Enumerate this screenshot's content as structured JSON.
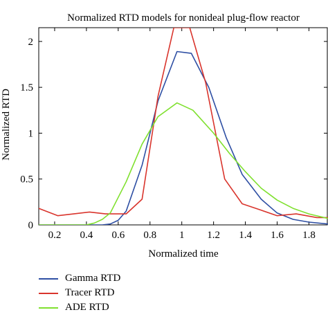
{
  "chart_data": {
    "type": "line",
    "title": "Normalized RTD models for nonideal plug-flow reactor",
    "xlabel": "Normalized time",
    "ylabel": "Normalized RTD",
    "xlim": [
      0.1,
      1.92
    ],
    "ylim": [
      0,
      2.15
    ],
    "xticks": [
      0.2,
      0.4,
      0.6,
      0.8,
      1,
      1.2,
      1.4,
      1.6,
      1.8
    ],
    "xtick_labels": [
      "0.2",
      "0.4",
      "0.6",
      "0.8",
      "1",
      "1.2",
      "1.4",
      "1.6",
      "1.8"
    ],
    "yticks": [
      0,
      0.5,
      1,
      1.5,
      2
    ],
    "ytick_labels": [
      "0",
      "0.5",
      "1",
      "1.5",
      "2"
    ],
    "grid": false,
    "legend_position": "bottom-left, below the plot",
    "series": [
      {
        "name": "Gamma RTD",
        "color": "#2d4ea3",
        "x": [
          0.1,
          0.2,
          0.3,
          0.4,
          0.45,
          0.5,
          0.55,
          0.6,
          0.65,
          0.75,
          0.85,
          0.97,
          1.06,
          1.17,
          1.28,
          1.38,
          1.5,
          1.6,
          1.7,
          1.8,
          1.92
        ],
        "y": [
          0,
          0,
          0,
          0,
          0,
          0,
          0.01,
          0.05,
          0.15,
          0.65,
          1.35,
          1.89,
          1.87,
          1.5,
          0.95,
          0.55,
          0.28,
          0.13,
          0.06,
          0.03,
          0.01
        ]
      },
      {
        "name": "Tracer RTD",
        "color": "#d9342c",
        "x": [
          0.1,
          0.22,
          0.32,
          0.42,
          0.52,
          0.65,
          0.75,
          0.85,
          0.95,
          1.05,
          1.15,
          1.27,
          1.38,
          1.5,
          1.6,
          1.72,
          1.85,
          1.92
        ],
        "y": [
          0.18,
          0.1,
          0.12,
          0.14,
          0.12,
          0.12,
          0.28,
          1.4,
          2.15,
          2.15,
          1.55,
          0.5,
          0.23,
          0.16,
          0.1,
          0.12,
          0.08,
          0.08
        ]
      },
      {
        "name": "ADE RTD",
        "color": "#7fe02e",
        "x": [
          0.1,
          0.3,
          0.4,
          0.45,
          0.5,
          0.55,
          0.65,
          0.75,
          0.85,
          0.97,
          1.07,
          1.2,
          1.3,
          1.4,
          1.5,
          1.6,
          1.7,
          1.8,
          1.92
        ],
        "y": [
          0,
          0,
          0,
          0.02,
          0.06,
          0.13,
          0.47,
          0.88,
          1.18,
          1.33,
          1.25,
          1.0,
          0.78,
          0.58,
          0.4,
          0.27,
          0.18,
          0.12,
          0.07
        ]
      }
    ]
  }
}
